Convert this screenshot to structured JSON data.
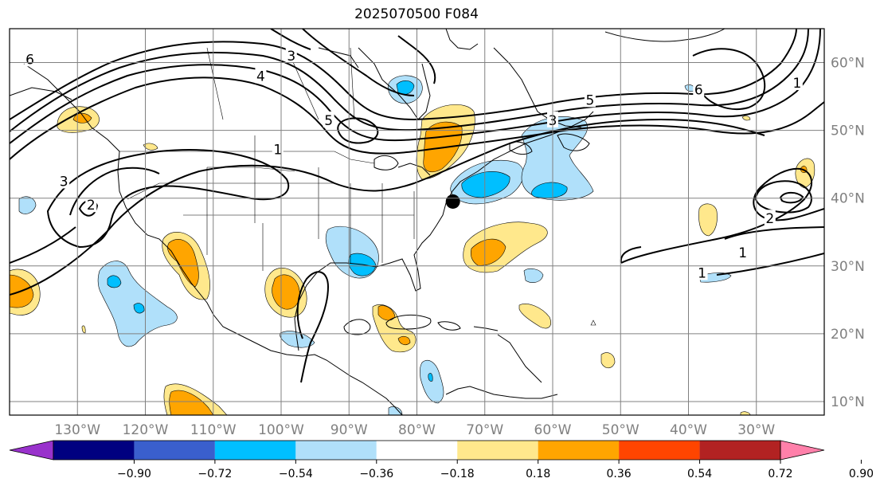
{
  "title": "2025070500 F084",
  "map": {
    "lon_range": [
      -140,
      -20
    ],
    "lat_range": [
      8,
      65
    ],
    "lon_ticks": [
      {
        "value": -130,
        "label": "130°W"
      },
      {
        "value": -120,
        "label": "120°W"
      },
      {
        "value": -110,
        "label": "110°W"
      },
      {
        "value": -100,
        "label": "100°W"
      },
      {
        "value": -90,
        "label": "90°W"
      },
      {
        "value": -80,
        "label": "80°W"
      },
      {
        "value": -70,
        "label": "70°W"
      },
      {
        "value": -60,
        "label": "60°W"
      },
      {
        "value": -50,
        "label": "50°W"
      },
      {
        "value": -40,
        "label": "40°W"
      },
      {
        "value": -30,
        "label": "30°W"
      }
    ],
    "lat_ticks": [
      {
        "value": 10,
        "label": "10°N"
      },
      {
        "value": 20,
        "label": "20°N"
      },
      {
        "value": 30,
        "label": "30°N"
      },
      {
        "value": 40,
        "label": "40°N"
      },
      {
        "value": 50,
        "label": "50°N"
      },
      {
        "value": 60,
        "label": "60°N"
      }
    ],
    "grid": true,
    "marker": {
      "lon": -74.7,
      "lat": 39.5
    },
    "contour_labels": [
      {
        "text": "6",
        "lon": -137,
        "lat": 60.5
      },
      {
        "text": "3",
        "lon": -98.5,
        "lat": 61
      },
      {
        "text": "4",
        "lon": -103,
        "lat": 58
      },
      {
        "text": "5",
        "lon": -93,
        "lat": 51.5
      },
      {
        "text": "1",
        "lon": -100.5,
        "lat": 47.2
      },
      {
        "text": "3",
        "lon": -132,
        "lat": 42.5
      },
      {
        "text": "2",
        "lon": -128,
        "lat": 39
      },
      {
        "text": "5",
        "lon": -54.5,
        "lat": 54.5
      },
      {
        "text": "3",
        "lon": -60,
        "lat": 51.5
      },
      {
        "text": "6",
        "lon": -38.5,
        "lat": 56
      },
      {
        "text": "1",
        "lon": -24,
        "lat": 57
      },
      {
        "text": "2",
        "lon": -28,
        "lat": 37
      },
      {
        "text": "1",
        "lon": -32,
        "lat": 32
      },
      {
        "text": "1",
        "lon": -38,
        "lat": 29
      }
    ]
  },
  "colorbar": {
    "colors": [
      "#9932cc",
      "#000080",
      "#3a5fcd",
      "#00bfff",
      "#b0e0fa",
      "#ffffff",
      "#ffe88c",
      "#ffa500",
      "#ff4500",
      "#b22222",
      "#ff80aa"
    ],
    "labels": [
      "−0.90",
      "−0.72",
      "−0.54",
      "−0.36",
      "−0.18",
      "0.18",
      "0.36",
      "0.54",
      "0.72",
      "0.90"
    ]
  }
}
